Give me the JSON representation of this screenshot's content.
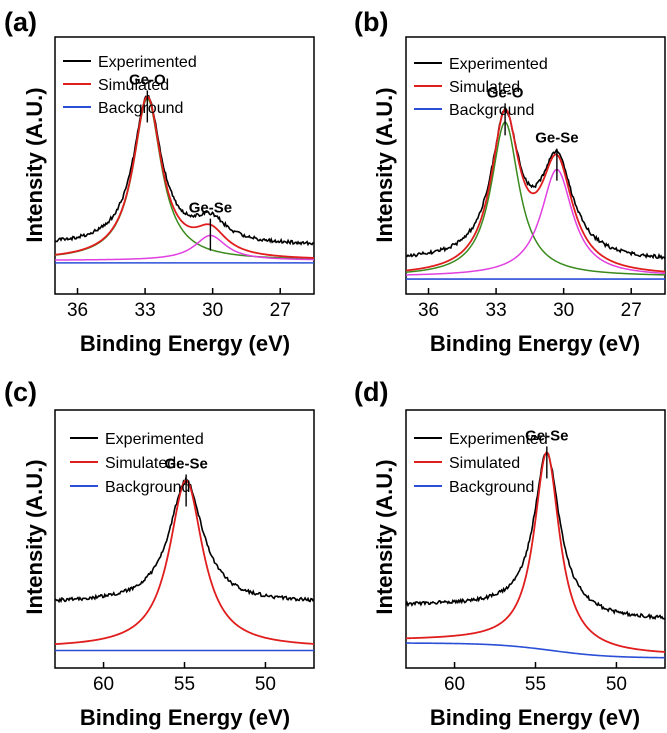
{
  "chart_data": [
    {
      "panel_label": "(a)",
      "type": "line",
      "xlabel": "Binding Energy (eV)",
      "ylabel": "Intensity (A.U.)",
      "x_reversed": true,
      "xlim": [
        37,
        25.5
      ],
      "xticks": [
        36,
        33,
        30,
        27
      ],
      "ylim": [
        0,
        100
      ],
      "legend": {
        "placement": "top-left",
        "entries": [
          "Experimented",
          "Simulated",
          "Background"
        ]
      },
      "colors": {
        "Experimented": "#000000",
        "Simulated": "#e01e1e",
        "Background": "#2a4fd6",
        "Ge-O": "#3a8a1e",
        "Ge-Se": "#e040e0"
      },
      "background_level": 12.5,
      "baseline": 13.5,
      "components": [
        {
          "name": "Ge-O",
          "center": 32.9,
          "amplitude": 65,
          "width": 0.75
        },
        {
          "name": "Ge-Se",
          "center": 30.1,
          "amplitude": 10,
          "width": 0.85
        }
      ],
      "experimented_offset": 6,
      "annotations": [
        {
          "text": "Ge-O",
          "x": 32.9
        },
        {
          "text": "Ge-Se",
          "x": 30.1
        }
      ]
    },
    {
      "panel_label": "(b)",
      "type": "line",
      "xlabel": "Binding Energy (eV)",
      "ylabel": "Intensity (A.U.)",
      "x_reversed": true,
      "xlim": [
        37,
        25.5
      ],
      "xticks": [
        36,
        33,
        30,
        27
      ],
      "ylim": [
        0,
        100
      ],
      "legend": {
        "placement": "top-left",
        "entries": [
          "Experimented",
          "Simulated",
          "Background"
        ]
      },
      "colors": {
        "Experimented": "#000000",
        "Simulated": "#e01e1e",
        "Background": "#2a4fd6",
        "Ge-O": "#3a8a1e",
        "Ge-Se": "#e040e0"
      },
      "background_level": 6,
      "baseline": 7,
      "components": [
        {
          "name": "Ge-O",
          "center": 32.6,
          "amplitude": 62,
          "width": 0.75
        },
        {
          "name": "Ge-Se",
          "center": 30.3,
          "amplitude": 43,
          "width": 0.85
        }
      ],
      "experimented_offset": 6,
      "annotations": [
        {
          "text": "Ge-O",
          "x": 32.6
        },
        {
          "text": "Ge-Se",
          "x": 30.3
        }
      ]
    },
    {
      "panel_label": "(c)",
      "type": "line",
      "xlabel": "Binding Energy (eV)",
      "ylabel": "Intensity (A.U.)",
      "x_reversed": true,
      "xlim": [
        63,
        47
      ],
      "xticks": [
        60,
        55,
        50
      ],
      "ylim": [
        0,
        100
      ],
      "legend": {
        "placement": "top-left",
        "entries": [
          "Experimented",
          "Simulated",
          "Background"
        ]
      },
      "colors": {
        "Experimented": "#000000",
        "Simulated": "#e01e1e",
        "Background": "#2a4fd6"
      },
      "background_level": 7,
      "baseline": 8,
      "components": [
        {
          "name": "Ge-Se",
          "center": 54.9,
          "amplitude": 67,
          "width": 1.25
        }
      ],
      "experimented_offset": 18,
      "annotations": [
        {
          "text": "Ge-Se",
          "x": 54.9
        }
      ]
    },
    {
      "panel_label": "(d)",
      "type": "line",
      "xlabel": "Binding Energy (eV)",
      "ylabel": "Intensity (A.U.)",
      "x_reversed": true,
      "xlim": [
        63,
        47
      ],
      "xticks": [
        60,
        55,
        50
      ],
      "ylim": [
        0,
        100
      ],
      "legend": {
        "placement": "top-left",
        "entries": [
          "Experimented",
          "Simulated",
          "Background"
        ]
      },
      "colors": {
        "Experimented": "#000000",
        "Simulated": "#e01e1e",
        "Background": "#2a4fd6"
      },
      "background_level": 10,
      "background_drop": 6,
      "baseline": 11,
      "components": [
        {
          "name": "Ge-Se",
          "center": 54.3,
          "amplitude": 78,
          "width": 0.95
        }
      ],
      "experimented_offset": 14,
      "annotations": [
        {
          "text": "Ge-Se",
          "x": 54.3
        }
      ]
    }
  ]
}
